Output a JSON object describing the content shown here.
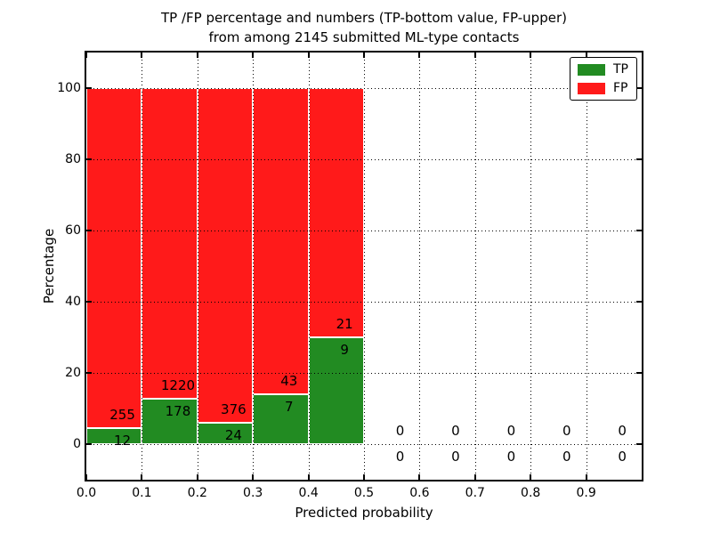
{
  "title": {
    "line1": "TP /FP percentage and numbers (TP-bottom value, FP-upper)",
    "line2": "from among 2145 submitted ML-type contacts"
  },
  "axes": {
    "xlabel": "Predicted probability",
    "ylabel": "Percentage"
  },
  "legend": {
    "items": [
      {
        "label": "TP",
        "color": "#228B22"
      },
      {
        "label": "FP",
        "color": "#FF1A1A"
      }
    ]
  },
  "colors": {
    "tp": "#228B22",
    "fp": "#FF1A1A",
    "axis": "#000000",
    "background": "#FFFFFF",
    "bar_edge": "#FFFFFF"
  },
  "chart_data": {
    "type": "bar",
    "stacked": true,
    "normalization": "each bin scaled to 100%; printed numbers are raw counts (TP bottom, FP upper)",
    "title": "TP /FP percentage and numbers (TP-bottom value, FP-upper) from among 2145 submitted ML-type contacts",
    "xlabel": "Predicted probability",
    "ylabel": "Percentage",
    "xlim": [
      0.0,
      1.0
    ],
    "ylim": [
      -10,
      110
    ],
    "grid": true,
    "grid_style": "dotted",
    "legend_position": "upper right",
    "total_contacts": 2145,
    "bin_edges": [
      0.0,
      0.1,
      0.2,
      0.3,
      0.4,
      0.5,
      0.6,
      0.7,
      0.8,
      0.9,
      1.0
    ],
    "categories": [
      "0.0-0.1",
      "0.1-0.2",
      "0.2-0.3",
      "0.3-0.4",
      "0.4-0.5",
      "0.5-0.6",
      "0.6-0.7",
      "0.7-0.8",
      "0.8-0.9",
      "0.9-1.0"
    ],
    "xticks": [
      "0.0",
      "0.1",
      "0.2",
      "0.3",
      "0.4",
      "0.5",
      "0.6",
      "0.7",
      "0.8",
      "0.9"
    ],
    "yticks": [
      0,
      20,
      40,
      60,
      80,
      100
    ],
    "series": [
      {
        "name": "TP",
        "color": "#228B22",
        "counts": [
          12,
          178,
          24,
          7,
          9,
          0,
          0,
          0,
          0,
          0
        ]
      },
      {
        "name": "FP",
        "color": "#FF1A1A",
        "counts": [
          255,
          1220,
          376,
          43,
          21,
          0,
          0,
          0,
          0,
          0
        ]
      }
    ],
    "tp_percent_of_bin": [
      4.49,
      12.73,
      6.0,
      14.0,
      30.0,
      0,
      0,
      0,
      0,
      0
    ]
  }
}
